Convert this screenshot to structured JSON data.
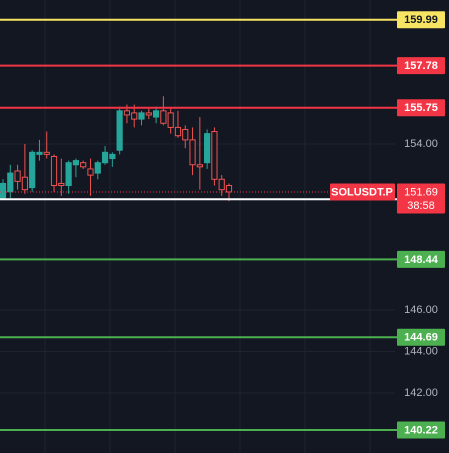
{
  "chart_data": {
    "type": "candlestick",
    "ylim": [
      139.11,
      160.94
    ],
    "yticks": [
      {
        "value": 154,
        "label": "154.00"
      },
      {
        "value": 146,
        "label": "146.00"
      },
      {
        "value": 144,
        "label": "144.00"
      },
      {
        "value": 142,
        "label": "142.00"
      }
    ],
    "up_color": "#26a69a",
    "down_color": "#ef5350",
    "series": [
      {
        "name": "SOLUSDT.P",
        "open": [
          151.4,
          151.7,
          152.7,
          152.4,
          151.9,
          153.5,
          153.6,
          153.4,
          152.1,
          152.0,
          153.0,
          153.1,
          152.8,
          152.6,
          153.1,
          153.3,
          153.7,
          155.6,
          155.5,
          155.2,
          155.5,
          155.3,
          155.6,
          155.5,
          154.8,
          154.7,
          154.2,
          153.0,
          153.1,
          154.6,
          152.3,
          152.0
        ],
        "high": [
          152.3,
          153.0,
          153.0,
          154.0,
          153.7,
          154.2,
          154.6,
          153.5,
          153.3,
          153.2,
          153.3,
          153.2,
          153.3,
          153.2,
          153.9,
          153.6,
          155.8,
          155.9,
          155.9,
          155.6,
          155.7,
          155.8,
          156.3,
          155.7,
          155.6,
          154.9,
          154.8,
          155.3,
          154.7,
          154.8,
          152.5,
          152.1
        ],
        "low": [
          151.3,
          151.4,
          151.8,
          151.6,
          151.7,
          153.2,
          153.3,
          151.7,
          151.5,
          151.6,
          152.4,
          152.8,
          151.5,
          152.3,
          153.0,
          152.9,
          153.5,
          155.0,
          154.8,
          154.9,
          155.2,
          155.0,
          154.9,
          154.5,
          154.3,
          153.8,
          152.5,
          151.8,
          152.8,
          152.0,
          151.5,
          151.25
        ],
        "close": [
          152.1,
          152.6,
          152.2,
          151.8,
          153.6,
          153.6,
          153.5,
          152.0,
          152.0,
          153.1,
          153.2,
          152.9,
          152.5,
          153.1,
          153.6,
          153.5,
          155.6,
          155.4,
          155.2,
          155.5,
          155.4,
          155.6,
          155.0,
          154.8,
          154.4,
          154.2,
          153.0,
          152.9,
          154.5,
          152.3,
          151.8,
          151.69
        ]
      }
    ],
    "levels": [
      {
        "value": 159.99,
        "color": "#f7e463",
        "text_color": "#131722"
      },
      {
        "value": 157.78,
        "color": "#f23645",
        "text_color": "#ffffff"
      },
      {
        "value": 155.75,
        "color": "#f23645",
        "text_color": "#ffffff"
      },
      {
        "value": 151.34,
        "color": "#ffffff",
        "text_color": "#131722"
      },
      {
        "value": 148.44,
        "color": "#4caf50",
        "text_color": "#ffffff"
      },
      {
        "value": 144.69,
        "color": "#4caf50",
        "text_color": "#ffffff"
      },
      {
        "value": 140.22,
        "color": "#4caf50",
        "text_color": "#ffffff"
      }
    ],
    "last_price": {
      "symbol": "SOLUSDT.P",
      "value": 151.69,
      "countdown": "38:58",
      "color": "#f23645"
    }
  }
}
